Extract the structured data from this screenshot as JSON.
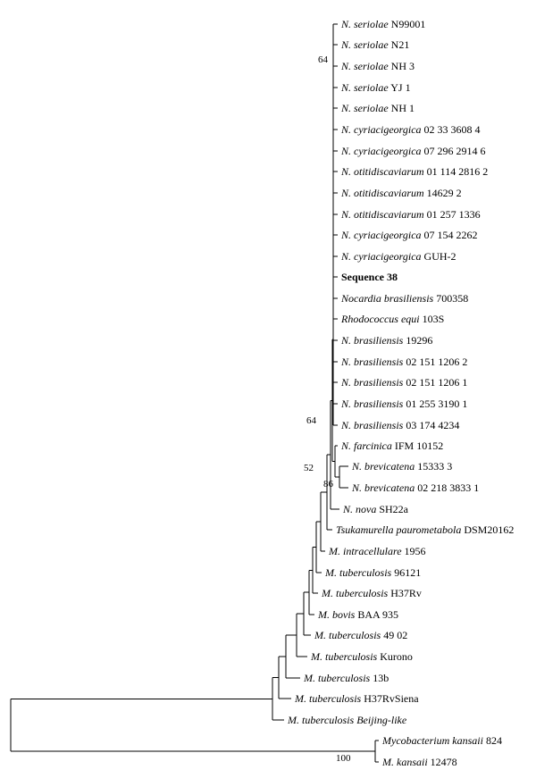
{
  "leaves": [
    {
      "genus": "N. seriolae",
      "strain": "N99001",
      "bold": false
    },
    {
      "genus": "N. seriolae",
      "strain": "N21",
      "bold": false
    },
    {
      "genus": "N. seriolae",
      "strain": "NH 3",
      "bold": false
    },
    {
      "genus": "N. seriolae",
      "strain": "YJ 1",
      "bold": false
    },
    {
      "genus": "N. seriolae",
      "strain": "NH 1",
      "bold": false
    },
    {
      "genus": "N. cyriacigeorgica",
      "strain": "02 33 3608 4",
      "bold": false
    },
    {
      "genus": "N. cyriacigeorgica",
      "strain": "07 296 2914 6",
      "bold": false
    },
    {
      "genus": "N. otitidiscaviarum",
      "strain": "01 114 2816 2",
      "bold": false
    },
    {
      "genus": "N. otitidiscaviarum",
      "strain": "14629 2",
      "bold": false
    },
    {
      "genus": "N. otitidiscaviarum",
      "strain": "01 257 1336",
      "bold": false
    },
    {
      "genus": "N. cyriacigeorgica",
      "strain": "07 154 2262",
      "bold": false
    },
    {
      "genus": "N. cyriacigeorgica",
      "strain": "GUH-2",
      "bold": false
    },
    {
      "genus": "",
      "strain": "Sequence 38",
      "bold": true
    },
    {
      "genus": "Nocardia brasiliensis",
      "strain": "700358",
      "bold": false
    },
    {
      "genus": "Rhodococcus equi",
      "strain": "103S",
      "bold": false
    },
    {
      "genus": "N. brasiliensis",
      "strain": "19296",
      "bold": false
    },
    {
      "genus": "N. brasiliensis",
      "strain": "02 151 1206 2",
      "bold": false
    },
    {
      "genus": "N. brasiliensis",
      "strain": "02 151 1206 1",
      "bold": false
    },
    {
      "genus": "N. brasiliensis",
      "strain": "01 255 3190 1",
      "bold": false
    },
    {
      "genus": "N. brasiliensis",
      "strain": "03 174 4234",
      "bold": false
    },
    {
      "genus": "N. farcinica",
      "strain": "IFM 10152",
      "bold": false
    },
    {
      "genus": "N. brevicatena",
      "strain": "15333 3",
      "bold": false
    },
    {
      "genus": "N. brevicatena",
      "strain": "02 218 3833 1",
      "bold": false
    },
    {
      "genus": "N. nova",
      "strain": "SH22a",
      "bold": false
    },
    {
      "genus": "Tsukamurella paurometabola",
      "strain": "DSM20162",
      "bold": false
    },
    {
      "genus": "M. intracellulare",
      "strain": "1956",
      "bold": false
    },
    {
      "genus": "M. tuberculosis",
      "strain": "96121",
      "bold": false
    },
    {
      "genus": "M. tuberculosis",
      "strain": "H37Rv",
      "bold": false
    },
    {
      "genus": "M. bovis",
      "strain": "BAA 935",
      "bold": false
    },
    {
      "genus": "M. tuberculosis",
      "strain": "49 02",
      "bold": false
    },
    {
      "genus": "M. tuberculosis",
      "strain": "Kurono",
      "bold": false
    },
    {
      "genus": "M. tuberculosis",
      "strain": "13b",
      "bold": false
    },
    {
      "genus": "M. tuberculosis",
      "strain": "H37RvSiena",
      "bold": false
    },
    {
      "genus": "M. tuberculosis Beijing-like",
      "strain": "",
      "bold": false
    },
    {
      "genus": "Mycobacterium kansaii",
      "strain": "824",
      "bold": false
    },
    {
      "genus": "M. kansaii",
      "strain": "12478",
      "bold": false
    }
  ],
  "bootstrap": [
    "64",
    "64",
    "52",
    "86",
    "100"
  ]
}
